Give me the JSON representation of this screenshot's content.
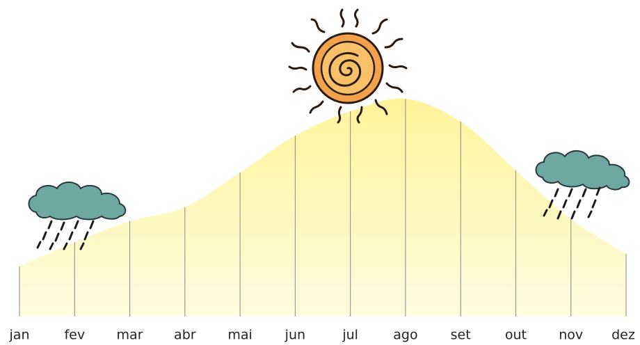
{
  "chart_data": {
    "type": "area",
    "categories": [
      "jan",
      "fev",
      "mar",
      "abr",
      "mai",
      "jun",
      "jul",
      "ago",
      "set",
      "out",
      "nov",
      "dez"
    ],
    "values": [
      72,
      107,
      137,
      157,
      207,
      260,
      295,
      313,
      280,
      210,
      140,
      90
    ],
    "color": "#fff6a0"
  }
}
